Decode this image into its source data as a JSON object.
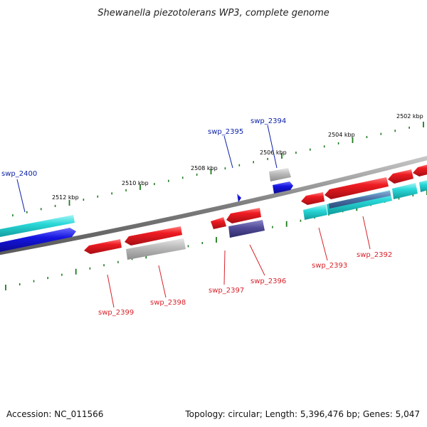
{
  "title": "Shewanella piezotolerans WP3, complete genome",
  "footer": {
    "accession": "Accession: NC_011566",
    "summary": "Topology: circular; Length: 5,396,476 bp; Genes: 5,047"
  },
  "scale_labels": [
    "2502 kbp",
    "2504 kbp",
    "2506 kbp",
    "2508 kbp",
    "2510 kbp",
    "2512 kbp"
  ],
  "gene_labels": [
    {
      "name": "swp_2400",
      "color": "#0b1fa8"
    },
    {
      "name": "swp_2395",
      "color": "#0b1fa8"
    },
    {
      "name": "swp_2394",
      "color": "#0b1fa8"
    },
    {
      "name": "swp_2399",
      "color": "#d8222a"
    },
    {
      "name": "swp_2398",
      "color": "#d8222a"
    },
    {
      "name": "swp_2397",
      "color": "#d8222a"
    },
    {
      "name": "swp_2396",
      "color": "#d8222a"
    },
    {
      "name": "swp_2393",
      "color": "#d8222a"
    },
    {
      "name": "swp_2392",
      "color": "#d8222a"
    }
  ],
  "colors": {
    "backbone": "#7a7a7a",
    "tick": "#1e7a1e",
    "cds_red": "#e8151c",
    "cds_blue": "#1111dd",
    "cds_gray": "#b5b5b5",
    "cds_purple": "#4f4a94",
    "cds_cyan": "#25d6d6"
  }
}
